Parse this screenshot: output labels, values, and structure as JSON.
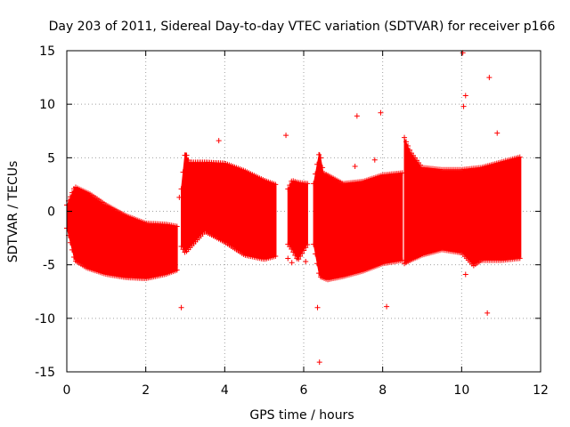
{
  "chart_data": {
    "type": "scatter",
    "title": "Day 203 of 2011, Sidereal Day-to-day VTEC variation (SDTVAR) for receiver p166",
    "xlabel": "GPS time / hours",
    "ylabel": "SDTVAR / TECUs",
    "xlim": [
      0,
      12
    ],
    "ylim": [
      -15,
      15
    ],
    "x_ticks": [
      0,
      2,
      4,
      6,
      8,
      10,
      12
    ],
    "x_tick_labels": [
      "0",
      "2",
      "4",
      "6",
      "8",
      "10",
      "12"
    ],
    "y_ticks": [
      -15,
      -10,
      -5,
      0,
      5,
      10,
      15
    ],
    "y_tick_labels": [
      "-15",
      "-10",
      "-5",
      "0",
      "5",
      "10",
      "15"
    ],
    "grid": true,
    "marker": "+",
    "color": "#ff0000",
    "envelope_segments": [
      {
        "name": "segment-1",
        "upper": [
          [
            0.0,
            0.5
          ],
          [
            0.2,
            2.2
          ],
          [
            0.6,
            1.5
          ],
          [
            1.0,
            0.5
          ],
          [
            1.5,
            -0.5
          ],
          [
            2.0,
            -1.2
          ],
          [
            2.5,
            -1.3
          ],
          [
            2.8,
            -1.5
          ]
        ],
        "lower": [
          [
            0.0,
            -1.5
          ],
          [
            0.2,
            -4.5
          ],
          [
            0.5,
            -5.2
          ],
          [
            1.0,
            -5.8
          ],
          [
            1.5,
            -6.1
          ],
          [
            2.0,
            -6.2
          ],
          [
            2.5,
            -5.8
          ],
          [
            2.8,
            -5.4
          ]
        ]
      },
      {
        "name": "segment-2",
        "upper": [
          [
            2.9,
            2.0
          ],
          [
            3.0,
            5.5
          ],
          [
            3.1,
            4.5
          ],
          [
            3.5,
            4.5
          ],
          [
            4.0,
            4.4
          ],
          [
            4.5,
            3.7
          ],
          [
            5.0,
            2.8
          ],
          [
            5.3,
            2.4
          ]
        ],
        "lower": [
          [
            2.9,
            -3.2
          ],
          [
            3.0,
            -3.8
          ],
          [
            3.5,
            -1.8
          ],
          [
            4.0,
            -2.8
          ],
          [
            4.5,
            -4.0
          ],
          [
            5.0,
            -4.4
          ],
          [
            5.3,
            -4.1
          ]
        ]
      },
      {
        "name": "segment-3",
        "upper": [
          [
            5.6,
            2.0
          ],
          [
            5.7,
            2.8
          ],
          [
            5.85,
            2.6
          ],
          [
            6.1,
            2.5
          ]
        ],
        "lower": [
          [
            5.6,
            -3.0
          ],
          [
            5.7,
            -3.5
          ],
          [
            5.85,
            -4.5
          ],
          [
            6.1,
            -3.0
          ]
        ]
      },
      {
        "name": "segment-4",
        "upper": [
          [
            6.25,
            2.5
          ],
          [
            6.4,
            5.5
          ],
          [
            6.5,
            3.5
          ],
          [
            7.0,
            2.5
          ],
          [
            7.5,
            2.7
          ],
          [
            8.0,
            3.3
          ],
          [
            8.5,
            3.5
          ]
        ],
        "lower": [
          [
            6.25,
            -3.0
          ],
          [
            6.4,
            -6.0
          ],
          [
            6.6,
            -6.3
          ],
          [
            7.0,
            -6.0
          ],
          [
            7.5,
            -5.5
          ],
          [
            8.0,
            -4.8
          ],
          [
            8.5,
            -4.5
          ]
        ]
      },
      {
        "name": "segment-5",
        "upper": [
          [
            8.55,
            6.8
          ],
          [
            8.7,
            5.5
          ],
          [
            9.0,
            4.0
          ],
          [
            9.5,
            3.8
          ],
          [
            10.0,
            3.8
          ],
          [
            10.5,
            4.0
          ],
          [
            11.0,
            4.5
          ],
          [
            11.5,
            5.0
          ]
        ],
        "lower": [
          [
            8.55,
            -4.8
          ],
          [
            8.7,
            -4.5
          ],
          [
            9.0,
            -4.0
          ],
          [
            9.5,
            -3.5
          ],
          [
            10.0,
            -3.8
          ],
          [
            10.3,
            -5.0
          ],
          [
            10.5,
            -4.5
          ],
          [
            11.0,
            -4.5
          ],
          [
            11.5,
            -4.3
          ]
        ]
      }
    ],
    "outliers": [
      {
        "x": 10.03,
        "y": 14.8
      },
      {
        "x": 10.7,
        "y": 12.5
      },
      {
        "x": 10.1,
        "y": 10.8
      },
      {
        "x": 10.05,
        "y": 9.8
      },
      {
        "x": 7.35,
        "y": 8.9
      },
      {
        "x": 7.95,
        "y": 9.2
      },
      {
        "x": 10.9,
        "y": 7.3
      },
      {
        "x": 5.55,
        "y": 7.1
      },
      {
        "x": 3.85,
        "y": 6.6
      },
      {
        "x": 7.3,
        "y": 4.2
      },
      {
        "x": 7.8,
        "y": 4.8
      },
      {
        "x": 2.9,
        "y": -9.0
      },
      {
        "x": 6.35,
        "y": -9.0
      },
      {
        "x": 8.1,
        "y": -8.9
      },
      {
        "x": 10.65,
        "y": -9.5
      },
      {
        "x": 6.4,
        "y": -14.1
      },
      {
        "x": 10.1,
        "y": -5.9
      },
      {
        "x": 5.6,
        "y": -4.4
      },
      {
        "x": 5.7,
        "y": -4.8
      },
      {
        "x": 6.05,
        "y": -4.7
      },
      {
        "x": 2.85,
        "y": 1.3
      }
    ]
  }
}
